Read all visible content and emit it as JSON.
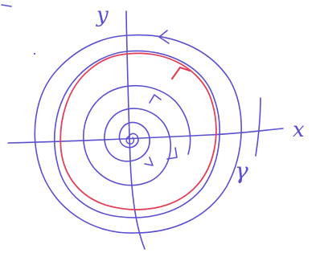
{
  "labels": {
    "y_axis": "y",
    "x_axis": "x",
    "limit_cycle": "γ"
  },
  "colors": {
    "ink": "#5a4fcf",
    "limit_cycle": "#e0405a",
    "paper": "#ffffff"
  },
  "description_free_elements": {
    "spiral_direction": "counterclockwise",
    "limit_cycle_direction": "counterclockwise"
  }
}
